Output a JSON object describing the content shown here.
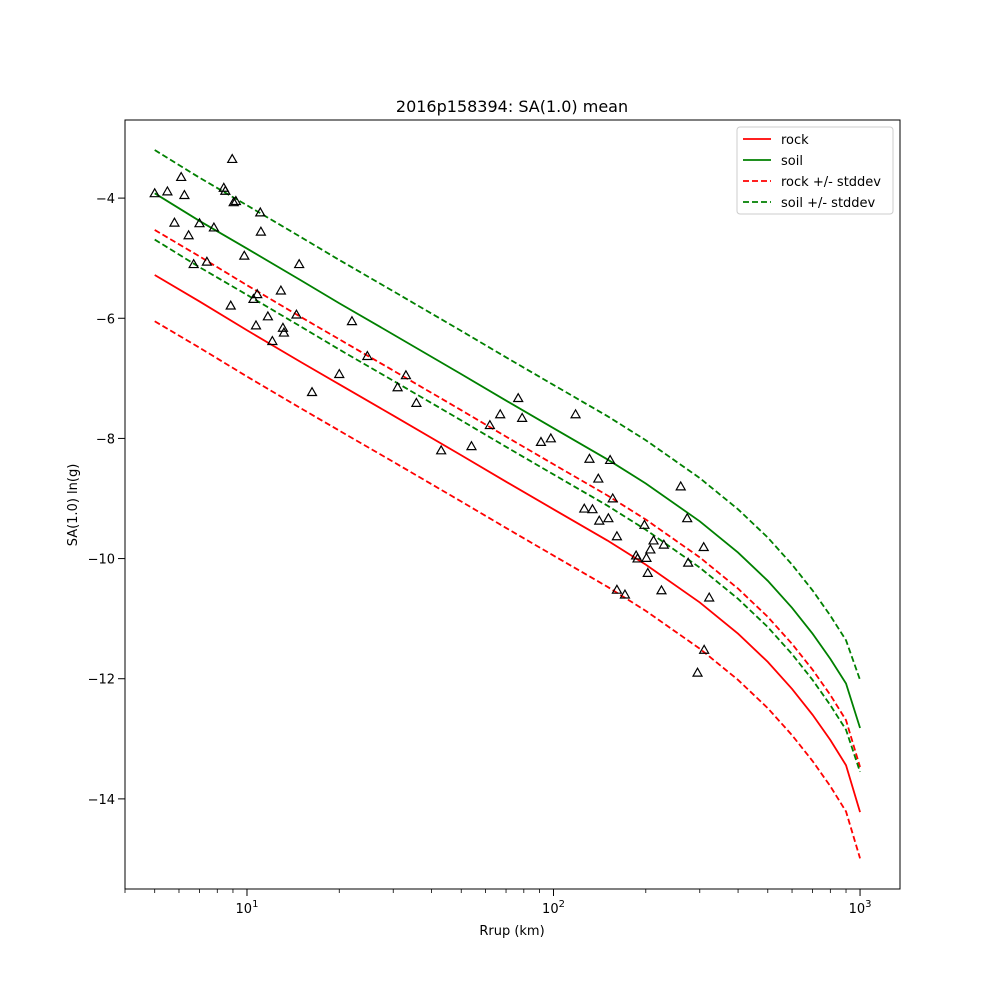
{
  "chart_data": {
    "type": "scatter",
    "title": "2016p158394: SA(1.0) mean",
    "xlabel": "Rrup (km)",
    "ylabel": "SA(1.0) ln(g)",
    "xscale": "log",
    "xlim": [
      4.0,
      1350
    ],
    "ylim": [
      -15.5,
      -2.7
    ],
    "xticks": [
      {
        "value": 10,
        "base": "10",
        "exp": "1"
      },
      {
        "value": 100,
        "base": "10",
        "exp": "2"
      },
      {
        "value": 1000,
        "base": "10",
        "exp": "3"
      }
    ],
    "yticks": [
      {
        "value": -14,
        "label": "−14"
      },
      {
        "value": -12,
        "label": "−12"
      },
      {
        "value": -10,
        "label": "−10"
      },
      {
        "value": -8,
        "label": "−8"
      },
      {
        "value": -6,
        "label": "−6"
      },
      {
        "value": -4,
        "label": "−4"
      }
    ],
    "grid": false,
    "legend_position": "top-right",
    "series": [
      {
        "name": "rock",
        "color": "#ff0000",
        "dash": "solid",
        "x": [
          5,
          7,
          10,
          15,
          20,
          30,
          50,
          70,
          100,
          150,
          200,
          300,
          400,
          500,
          600,
          700,
          800,
          900,
          1000
        ],
        "y": [
          -5.28,
          -5.72,
          -6.2,
          -6.73,
          -7.1,
          -7.62,
          -8.28,
          -8.72,
          -9.18,
          -9.7,
          -10.1,
          -10.73,
          -11.25,
          -11.72,
          -12.17,
          -12.6,
          -13.02,
          -13.44,
          -14.22
        ]
      },
      {
        "name": "soil",
        "color": "#008000",
        "dash": "solid",
        "x": [
          5,
          7,
          10,
          15,
          20,
          30,
          50,
          70,
          100,
          150,
          200,
          300,
          400,
          500,
          600,
          700,
          800,
          900,
          1000
        ],
        "y": [
          -3.92,
          -4.38,
          -4.84,
          -5.37,
          -5.75,
          -6.27,
          -6.93,
          -7.37,
          -7.83,
          -8.35,
          -8.75,
          -9.38,
          -9.9,
          -10.37,
          -10.82,
          -11.25,
          -11.67,
          -12.08,
          -12.82
        ]
      },
      {
        "name": "rock +/- stddev",
        "color": "#ff0000",
        "dash": "dashed",
        "x": [
          5,
          7,
          10,
          15,
          20,
          30,
          50,
          70,
          100,
          150,
          200,
          300,
          400,
          500,
          600,
          700,
          800,
          900,
          1000
        ],
        "y": [
          -4.53,
          -4.97,
          -5.45,
          -5.98,
          -6.35,
          -6.87,
          -7.53,
          -7.97,
          -8.43,
          -8.95,
          -9.35,
          -9.98,
          -10.5,
          -10.97,
          -11.42,
          -11.85,
          -12.27,
          -12.69,
          -13.47
        ]
      },
      {
        "name": "",
        "color": "#ff0000",
        "dash": "dashed",
        "x": [
          5,
          7,
          10,
          15,
          20,
          30,
          50,
          70,
          100,
          150,
          200,
          300,
          400,
          500,
          600,
          700,
          800,
          900,
          1000
        ],
        "y": [
          -6.05,
          -6.49,
          -6.97,
          -7.5,
          -7.87,
          -8.39,
          -9.05,
          -9.49,
          -9.95,
          -10.47,
          -10.87,
          -11.5,
          -12.02,
          -12.49,
          -12.94,
          -13.37,
          -13.79,
          -14.21,
          -14.99
        ]
      },
      {
        "name": "soil +/- stddev",
        "color": "#008000",
        "dash": "dashed",
        "x": [
          5,
          7,
          10,
          15,
          20,
          30,
          50,
          70,
          100,
          150,
          200,
          300,
          400,
          500,
          600,
          700,
          800,
          900,
          1000
        ],
        "y": [
          -3.2,
          -3.66,
          -4.12,
          -4.65,
          -5.03,
          -5.55,
          -6.21,
          -6.65,
          -7.11,
          -7.63,
          -8.03,
          -8.66,
          -9.18,
          -9.65,
          -10.1,
          -10.53,
          -10.95,
          -11.36,
          -12.02
        ]
      },
      {
        "name": "",
        "color": "#008000",
        "dash": "dashed",
        "x": [
          5,
          7,
          10,
          15,
          20,
          30,
          50,
          70,
          100,
          150,
          200,
          300,
          400,
          500,
          600,
          700,
          800,
          900,
          1000
        ],
        "y": [
          -4.69,
          -5.15,
          -5.61,
          -6.14,
          -6.52,
          -7.04,
          -7.7,
          -8.14,
          -8.6,
          -9.12,
          -9.52,
          -10.15,
          -10.67,
          -11.14,
          -11.59,
          -12.02,
          -12.44,
          -12.85,
          -13.55
        ]
      }
    ],
    "observations": {
      "marker": "triangle",
      "edge_color": "#000000",
      "points": [
        {
          "x": 5.0,
          "y": -3.92
        },
        {
          "x": 5.5,
          "y": -3.89
        },
        {
          "x": 5.8,
          "y": -4.41
        },
        {
          "x": 6.1,
          "y": -3.65
        },
        {
          "x": 6.25,
          "y": -3.95
        },
        {
          "x": 6.45,
          "y": -4.62
        },
        {
          "x": 6.7,
          "y": -5.1
        },
        {
          "x": 7.0,
          "y": -4.42
        },
        {
          "x": 7.4,
          "y": -5.06
        },
        {
          "x": 7.8,
          "y": -4.49
        },
        {
          "x": 8.4,
          "y": -3.83
        },
        {
          "x": 8.5,
          "y": -3.88
        },
        {
          "x": 8.85,
          "y": -5.79
        },
        {
          "x": 9.05,
          "y": -4.07
        },
        {
          "x": 9.2,
          "y": -4.05
        },
        {
          "x": 8.95,
          "y": -3.35
        },
        {
          "x": 9.8,
          "y": -4.96
        },
        {
          "x": 10.5,
          "y": -5.68
        },
        {
          "x": 10.8,
          "y": -5.6
        },
        {
          "x": 10.7,
          "y": -6.12
        },
        {
          "x": 11.05,
          "y": -4.24
        },
        {
          "x": 11.1,
          "y": -4.56
        },
        {
          "x": 11.7,
          "y": -5.97
        },
        {
          "x": 12.1,
          "y": -6.38
        },
        {
          "x": 12.9,
          "y": -5.54
        },
        {
          "x": 13.1,
          "y": -6.16
        },
        {
          "x": 13.2,
          "y": -6.24
        },
        {
          "x": 14.5,
          "y": -5.94
        },
        {
          "x": 14.8,
          "y": -5.1
        },
        {
          "x": 16.3,
          "y": -7.23
        },
        {
          "x": 20.0,
          "y": -6.93
        },
        {
          "x": 22.0,
          "y": -6.05
        },
        {
          "x": 24.7,
          "y": -6.63
        },
        {
          "x": 31.0,
          "y": -7.15
        },
        {
          "x": 33.0,
          "y": -6.95
        },
        {
          "x": 35.7,
          "y": -7.41
        },
        {
          "x": 43.0,
          "y": -8.2
        },
        {
          "x": 54.0,
          "y": -8.13
        },
        {
          "x": 62.0,
          "y": -7.78
        },
        {
          "x": 67.0,
          "y": -7.6
        },
        {
          "x": 76.7,
          "y": -7.33
        },
        {
          "x": 79.0,
          "y": -7.66
        },
        {
          "x": 91.0,
          "y": -8.06
        },
        {
          "x": 98.0,
          "y": -8.0
        },
        {
          "x": 118.0,
          "y": -7.6
        },
        {
          "x": 126.0,
          "y": -9.17
        },
        {
          "x": 131.0,
          "y": -8.34
        },
        {
          "x": 134.0,
          "y": -9.18
        },
        {
          "x": 140.0,
          "y": -8.67
        },
        {
          "x": 141.0,
          "y": -9.37
        },
        {
          "x": 151.0,
          "y": -9.33
        },
        {
          "x": 153.0,
          "y": -8.36
        },
        {
          "x": 156.0,
          "y": -9.0
        },
        {
          "x": 161.0,
          "y": -9.63
        },
        {
          "x": 161.0,
          "y": -10.52
        },
        {
          "x": 171.0,
          "y": -10.6
        },
        {
          "x": 186.0,
          "y": -9.95
        },
        {
          "x": 188.0,
          "y": -10.0
        },
        {
          "x": 198.0,
          "y": -9.44
        },
        {
          "x": 201.0,
          "y": -9.99
        },
        {
          "x": 203.0,
          "y": -10.24
        },
        {
          "x": 207.0,
          "y": -9.85
        },
        {
          "x": 212.0,
          "y": -9.7
        },
        {
          "x": 225.0,
          "y": -10.53
        },
        {
          "x": 229.0,
          "y": -9.77
        },
        {
          "x": 260.0,
          "y": -8.8
        },
        {
          "x": 273.0,
          "y": -9.33
        },
        {
          "x": 275.0,
          "y": -10.07
        },
        {
          "x": 295.0,
          "y": -11.9
        },
        {
          "x": 309.0,
          "y": -9.81
        },
        {
          "x": 310.0,
          "y": -11.52
        },
        {
          "x": 322.0,
          "y": -10.65
        }
      ]
    }
  }
}
